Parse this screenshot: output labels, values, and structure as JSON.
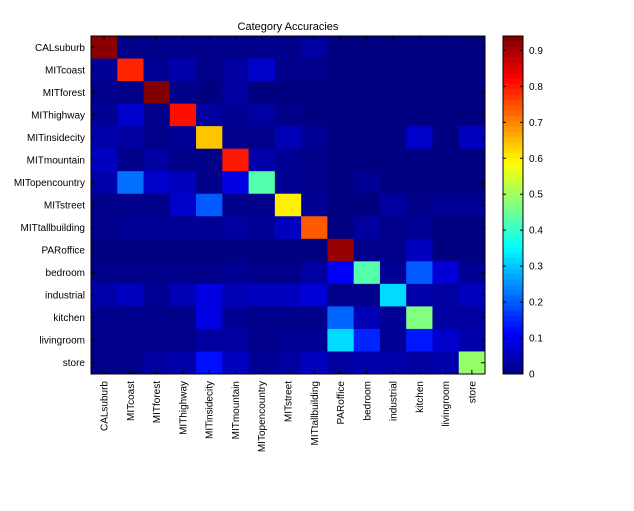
{
  "chart_data": {
    "type": "heatmap",
    "title": "Category Accuracies",
    "xlabel": "",
    "ylabel": "",
    "categories": [
      "CALsuburb",
      "MITcoast",
      "MITforest",
      "MIThighway",
      "MITinsidecity",
      "MITmountain",
      "MITopencountry",
      "MITstreet",
      "MITtallbuilding",
      "PARoffice",
      "bedroom",
      "industrial",
      "kitchen",
      "livingroom",
      "store"
    ],
    "colormap": "jet",
    "clim": [
      0,
      0.94
    ],
    "colorbar_ticks": [
      0,
      0.1,
      0.2,
      0.3,
      0.4,
      0.5,
      0.6,
      0.7,
      0.8,
      0.9
    ],
    "grid": false,
    "legend": "colorbar-right",
    "values": [
      [
        0.93,
        0.01,
        0.01,
        0.01,
        0.01,
        0.01,
        0.01,
        0.01,
        0.03,
        0.0,
        0.0,
        0.0,
        0.0,
        0.0,
        0.0
      ],
      [
        0.02,
        0.79,
        0.02,
        0.04,
        0.01,
        0.03,
        0.07,
        0.01,
        0.01,
        0.0,
        0.0,
        0.0,
        0.0,
        0.0,
        0.0
      ],
      [
        0.01,
        0.01,
        0.94,
        0.01,
        0.0,
        0.03,
        0.0,
        0.0,
        0.0,
        0.0,
        0.0,
        0.0,
        0.0,
        0.0,
        0.0
      ],
      [
        0.02,
        0.07,
        0.01,
        0.81,
        0.03,
        0.02,
        0.03,
        0.01,
        0.0,
        0.0,
        0.0,
        0.0,
        0.0,
        0.0,
        0.0
      ],
      [
        0.04,
        0.03,
        0.01,
        0.02,
        0.64,
        0.01,
        0.01,
        0.05,
        0.02,
        0.0,
        0.0,
        0.0,
        0.07,
        0.0,
        0.06
      ],
      [
        0.06,
        0.01,
        0.03,
        0.01,
        0.01,
        0.8,
        0.04,
        0.02,
        0.01,
        0.0,
        0.0,
        0.0,
        0.0,
        0.0,
        0.0
      ],
      [
        0.04,
        0.22,
        0.07,
        0.06,
        0.01,
        0.09,
        0.43,
        0.02,
        0.01,
        0.0,
        0.02,
        0.0,
        0.0,
        0.0,
        0.0
      ],
      [
        0.01,
        0.01,
        0.01,
        0.07,
        0.2,
        0.01,
        0.01,
        0.6,
        0.02,
        0.0,
        0.0,
        0.03,
        0.01,
        0.02,
        0.02
      ],
      [
        0.01,
        0.02,
        0.02,
        0.02,
        0.02,
        0.03,
        0.02,
        0.06,
        0.74,
        0.0,
        0.03,
        0.01,
        0.02,
        0.0,
        0.0
      ],
      [
        0.0,
        0.0,
        0.0,
        0.0,
        0.0,
        0.0,
        0.0,
        0.0,
        0.0,
        0.92,
        0.01,
        0.01,
        0.06,
        0.0,
        0.0
      ],
      [
        0.01,
        0.01,
        0.01,
        0.01,
        0.01,
        0.02,
        0.01,
        0.01,
        0.03,
        0.11,
        0.43,
        0.02,
        0.2,
        0.08,
        0.02
      ],
      [
        0.04,
        0.06,
        0.02,
        0.05,
        0.09,
        0.05,
        0.06,
        0.06,
        0.08,
        0.01,
        0.01,
        0.32,
        0.04,
        0.03,
        0.06
      ],
      [
        0.01,
        0.01,
        0.01,
        0.01,
        0.09,
        0.02,
        0.01,
        0.01,
        0.01,
        0.21,
        0.05,
        0.02,
        0.47,
        0.03,
        0.03
      ],
      [
        0.01,
        0.01,
        0.01,
        0.01,
        0.03,
        0.03,
        0.01,
        0.02,
        0.02,
        0.32,
        0.15,
        0.02,
        0.14,
        0.07,
        0.04
      ],
      [
        0.01,
        0.01,
        0.03,
        0.04,
        0.13,
        0.06,
        0.02,
        0.03,
        0.06,
        0.03,
        0.04,
        0.04,
        0.03,
        0.04,
        0.49
      ]
    ]
  }
}
